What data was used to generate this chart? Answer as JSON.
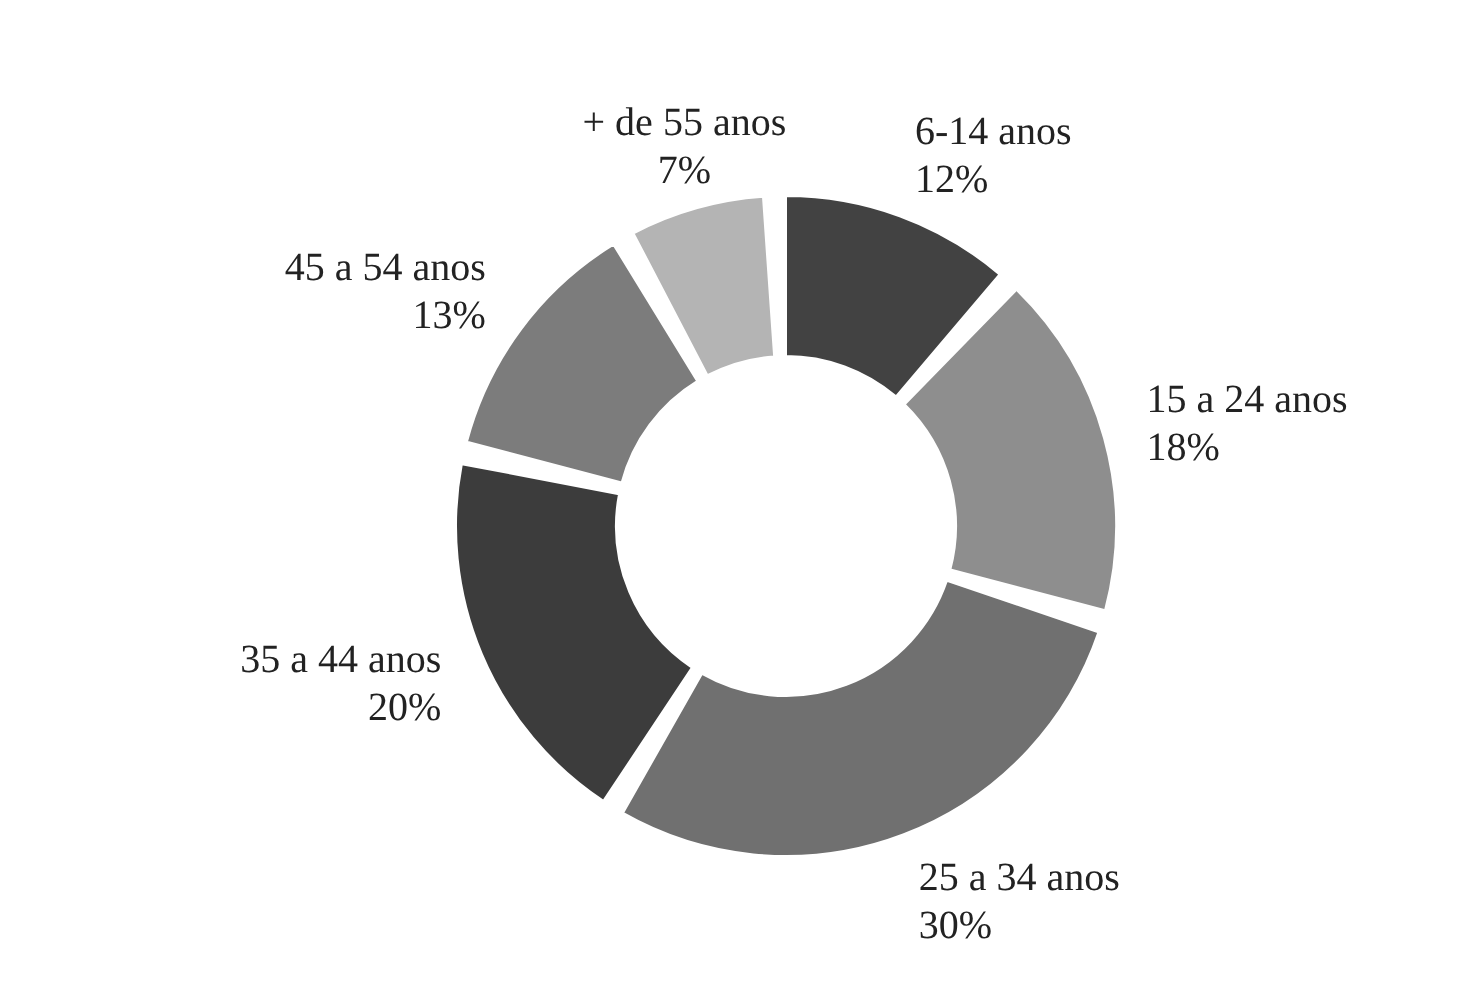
{
  "chart_data": {
    "type": "donut",
    "categories": [
      "6-14 anos",
      "15 a 24 anos",
      "25 a 34 anos",
      "35 a 44 anos",
      "45 a 54 anos",
      "+ de 55 anos"
    ],
    "values": [
      12,
      18,
      30,
      20,
      13,
      7
    ],
    "colors": [
      "#424242",
      "#8e8e8e",
      "#707070",
      "#3c3c3c",
      "#7c7c7c",
      "#b4b4b4"
    ],
    "value_labels": [
      "12%",
      "18%",
      "30%",
      "20%",
      "13%",
      "7%"
    ],
    "legend": false
  }
}
